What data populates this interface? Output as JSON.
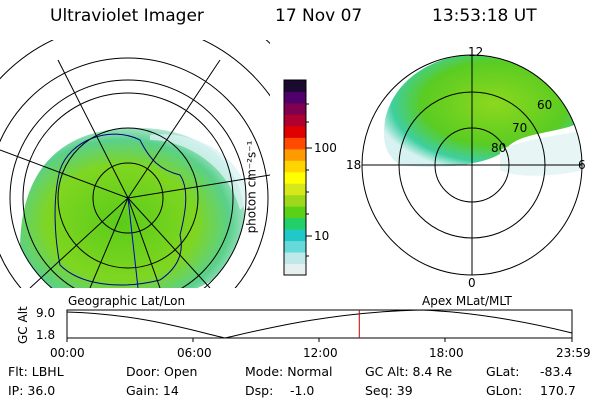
{
  "header": {
    "instrument": "Ultraviolet Imager",
    "date": "17 Nov 07",
    "time": "13:53:18 UT"
  },
  "left_map": {
    "label": "Geographic Lat/Lon"
  },
  "right_map": {
    "label": "Apex MLat/MLT",
    "mlt_labels": {
      "top": "12",
      "left": "18",
      "right": "6",
      "bottom": "0"
    },
    "lat_labels": [
      "60",
      "70",
      "80"
    ]
  },
  "colorbar": {
    "unit": "photon cm⁻²s⁻¹",
    "ticks": [
      "100",
      "10"
    ],
    "colors": [
      "#e6f0f0",
      "#bfe8e8",
      "#66d9d9",
      "#22c8c8",
      "#22d06a",
      "#5ad018",
      "#9ed81a",
      "#d6e81a",
      "#ffff00",
      "#ffd400",
      "#ff9a00",
      "#ff4a00",
      "#e00000",
      "#b00030",
      "#800050",
      "#50006a",
      "#1a0a30"
    ]
  },
  "timeline": {
    "ylabel": "GC Alt",
    "yticks": [
      "9.0",
      "1.8"
    ],
    "xticks": [
      "00:00",
      "06:00",
      "12:00",
      "18:00",
      "23:59"
    ],
    "current_hour": 13.89
  },
  "info": {
    "flt_label": "Flt: LBHL",
    "ip_label": "IP: 36.0",
    "door_label": "Door: Open",
    "gain_label": "Gain: 14",
    "mode_label": "Mode: Normal",
    "dsp_label": "Dsp:",
    "dsp_value": "-1.0",
    "gcalt_label": "GC Alt: 8.4 Re",
    "seq_label": "Seq: 39",
    "glat_label": "GLat:",
    "glat_value": "-83.4",
    "glon_label": "GLon:",
    "glon_value": "170.7"
  }
}
